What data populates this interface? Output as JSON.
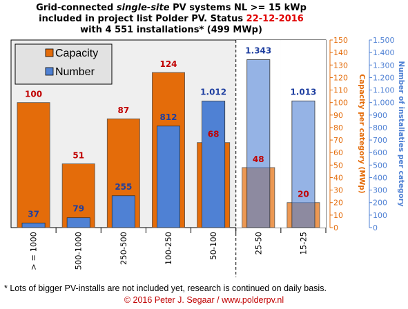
{
  "chart_data": {
    "type": "bar",
    "title": {
      "line1_pre": "Grid-connected ",
      "line1_italic": "single-site",
      "line1_post": " PV systems NL >= 15 kWp",
      "line2_pre": "included in project list Polder PV. Status ",
      "line2_date": "22-12-2016",
      "line3": "with 4 551 installations* (499 MWp)"
    },
    "categories": [
      "> = 1000",
      "500-1000",
      "250-500",
      "100-250",
      "50-100",
      "25-50",
      "15-25"
    ],
    "series": [
      {
        "name": "Capacity",
        "axis": "capacity",
        "color": "#E46C0A",
        "values": [
          100,
          51,
          87,
          124,
          68,
          48,
          20
        ],
        "labels": [
          "100",
          "51",
          "87",
          "124",
          "68",
          "48",
          "20"
        ]
      },
      {
        "name": "Number",
        "axis": "number",
        "color": "#4F81D4",
        "values": [
          37,
          79,
          255,
          812,
          1012,
          1343,
          1013
        ],
        "labels": [
          "37",
          "79",
          "255",
          "812",
          "1.012",
          "1.343",
          "1.013"
        ]
      }
    ],
    "axes": {
      "capacity": {
        "label": "Capacity per category (MWp)",
        "color": "#E46C0A",
        "ylim": [
          0,
          150
        ],
        "ticks": [
          "0",
          "10",
          "20",
          "30",
          "40",
          "50",
          "60",
          "70",
          "80",
          "90",
          "100",
          "110",
          "120",
          "130",
          "140",
          "150"
        ]
      },
      "number": {
        "label": "Number of installaties per category",
        "color": "#4F81D4",
        "ylim": [
          0,
          1500
        ],
        "ticks": [
          "0",
          "100",
          "200",
          "300",
          "400",
          "500",
          "600",
          "700",
          "800",
          "900",
          "1.000",
          "1.100",
          "1.200",
          "1.300",
          "1.400",
          "1.500"
        ]
      }
    },
    "legend": {
      "placement": "top-left",
      "items": [
        "Capacity",
        "Number"
      ]
    },
    "grid": false,
    "divider_after_category": "50-100",
    "highlighted_categories": [
      "25-50",
      "15-25"
    ],
    "colors": {
      "label_capacity": "#C00000",
      "label_number": "#1F3FA0",
      "plot_bg": "#EFEFEF",
      "title_date": "#E00000"
    }
  },
  "footer": {
    "note": "* Lots of bigger PV-installs are not included yet, research is continued on daily basis.",
    "copyright": "© 2016 Peter J. Segaar / www.polderpv.nl",
    "copyright_color": "#C00000"
  }
}
